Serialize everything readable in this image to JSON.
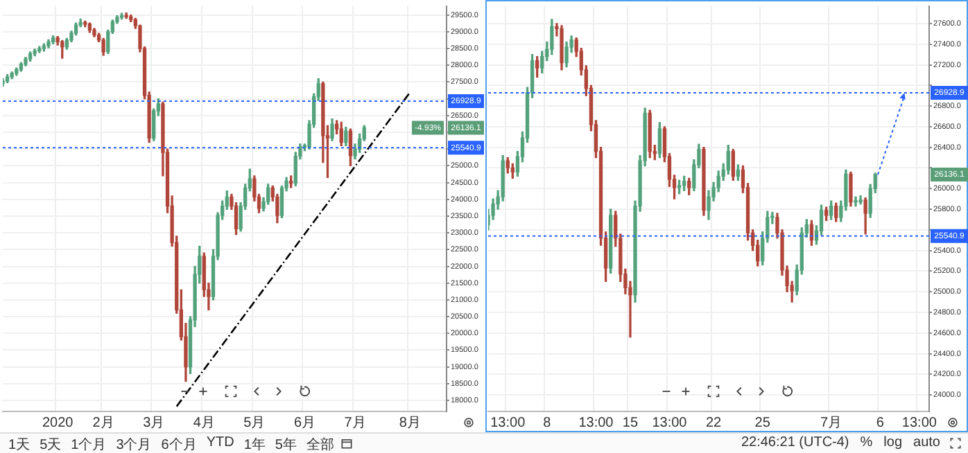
{
  "chart_data": [
    {
      "type": "candlestick",
      "grid": true,
      "legend": false,
      "categories": [
        null,
        null,
        null,
        null,
        null,
        null,
        null,
        null,
        null,
        null,
        null,
        null,
        "2020",
        null,
        null,
        null,
        null,
        null,
        null,
        null,
        null,
        null,
        "2月",
        null,
        null,
        null,
        null,
        null,
        null,
        null,
        null,
        null,
        null,
        "3月",
        null,
        null,
        null,
        null,
        null,
        null,
        null,
        null,
        null,
        null,
        "4月",
        null,
        null,
        null,
        null,
        null,
        null,
        null,
        null,
        null,
        null,
        "5月",
        null,
        null,
        null,
        null,
        null,
        null,
        null,
        null,
        null,
        null,
        "6月",
        null,
        null,
        null,
        null,
        null,
        null,
        null,
        null,
        null,
        null,
        "7月",
        null,
        null,
        null,
        null,
        null,
        null,
        null,
        null,
        null,
        null,
        null,
        "8月",
        null,
        null,
        null,
        null,
        null,
        null,
        null,
        null
      ],
      "ohlc": [
        [
          27450,
          27600,
          27380,
          27530
        ],
        [
          27530,
          27720,
          27480,
          27650
        ],
        [
          27650,
          27800,
          27600,
          27760
        ],
        [
          27760,
          27920,
          27700,
          27870
        ],
        [
          27870,
          28080,
          27820,
          28030
        ],
        [
          28030,
          28240,
          27980,
          28190
        ],
        [
          28190,
          28400,
          28120,
          28350
        ],
        [
          28350,
          28480,
          28280,
          28430
        ],
        [
          28430,
          28560,
          28380,
          28500
        ],
        [
          28500,
          28640,
          28420,
          28580
        ],
        [
          28580,
          28760,
          28520,
          28700
        ],
        [
          28700,
          28880,
          28640,
          28820
        ],
        [
          28820,
          28860,
          28600,
          28700
        ],
        [
          28700,
          28740,
          28210,
          28550
        ],
        [
          28550,
          28800,
          28480,
          28750
        ],
        [
          28750,
          29020,
          28700,
          28960
        ],
        [
          28960,
          29260,
          28900,
          29200
        ],
        [
          29200,
          29380,
          29150,
          29280
        ],
        [
          29280,
          29320,
          29150,
          29230
        ],
        [
          29230,
          29260,
          28980,
          29050
        ],
        [
          29050,
          29100,
          28850,
          28900
        ],
        [
          28900,
          28950,
          28700,
          28750
        ],
        [
          28750,
          28800,
          28300,
          28400
        ],
        [
          28400,
          29050,
          28350,
          29000
        ],
        [
          29000,
          29350,
          28950,
          29300
        ],
        [
          29300,
          29480,
          29250,
          29430
        ],
        [
          29430,
          29550,
          29380,
          29480
        ],
        [
          29480,
          29560,
          29400,
          29450
        ],
        [
          29450,
          29500,
          29300,
          29360
        ],
        [
          29360,
          29400,
          29100,
          29180
        ],
        [
          29180,
          29200,
          28400,
          28500
        ],
        [
          28500,
          28550,
          27000,
          27100
        ],
        [
          27100,
          27200,
          25700,
          25830
        ],
        [
          25830,
          26700,
          25750,
          26640
        ],
        [
          26640,
          27000,
          26500,
          26850
        ],
        [
          26850,
          26900,
          24700,
          25400
        ],
        [
          25400,
          25500,
          23600,
          23800
        ],
        [
          23800,
          24100,
          22600,
          22710
        ],
        [
          22710,
          22900,
          20600,
          20700
        ],
        [
          20700,
          21300,
          19800,
          19900
        ],
        [
          19900,
          20300,
          18570,
          19000
        ],
        [
          19000,
          20500,
          18800,
          20400
        ],
        [
          20400,
          22000,
          20200,
          21760
        ],
        [
          21760,
          22600,
          21500,
          22300
        ],
        [
          22300,
          22400,
          21100,
          21300
        ],
        [
          21300,
          21500,
          20700,
          21100
        ],
        [
          21100,
          22500,
          21000,
          22300
        ],
        [
          22300,
          23600,
          22200,
          23520
        ],
        [
          23520,
          23950,
          23400,
          23800
        ],
        [
          23800,
          24250,
          23700,
          24070
        ],
        [
          24070,
          24150,
          23700,
          23800
        ],
        [
          23800,
          23900,
          22950,
          23120
        ],
        [
          23120,
          23900,
          23050,
          23800
        ],
        [
          23800,
          24450,
          23700,
          24340
        ],
        [
          24340,
          24900,
          24250,
          24610
        ],
        [
          24610,
          24700,
          23950,
          24070
        ],
        [
          24070,
          24150,
          23600,
          23730
        ],
        [
          23730,
          24050,
          23650,
          23930
        ],
        [
          23930,
          24450,
          23850,
          24340
        ],
        [
          24340,
          24400,
          23950,
          24070
        ],
        [
          24070,
          24150,
          23300,
          23520
        ],
        [
          23520,
          24400,
          23450,
          24340
        ],
        [
          24340,
          24650,
          24250,
          24540
        ],
        [
          24540,
          24700,
          24350,
          24480
        ],
        [
          24480,
          25400,
          24400,
          25290
        ],
        [
          25290,
          25650,
          25200,
          25560
        ],
        [
          25560,
          25650,
          25450,
          25560
        ],
        [
          25560,
          26350,
          25500,
          26240
        ],
        [
          26240,
          27150,
          26150,
          27060
        ],
        [
          27060,
          27600,
          26950,
          27450
        ],
        [
          27450,
          27500,
          25100,
          25900
        ],
        [
          25900,
          26200,
          24650,
          25830
        ],
        [
          25830,
          26400,
          25750,
          26240
        ],
        [
          26240,
          26350,
          25950,
          26100
        ],
        [
          26100,
          26300,
          25600,
          25700
        ],
        [
          25700,
          26150,
          25600,
          26040
        ],
        [
          26040,
          26100,
          25000,
          25300
        ],
        [
          25300,
          25650,
          25200,
          25500
        ],
        [
          25500,
          25950,
          25400,
          25800
        ],
        [
          25800,
          26200,
          25750,
          26136.1
        ],
        null,
        null,
        null,
        null,
        null,
        null,
        null,
        null,
        null,
        null,
        null,
        null,
        null,
        null,
        null,
        null,
        null,
        null
      ],
      "series": [
        {
          "type": "line",
          "color": "#000000",
          "line_style": "dashed",
          "values": [
            null,
            null,
            null,
            null,
            null,
            null,
            null,
            null,
            null,
            null,
            null,
            null,
            null,
            null,
            null,
            null,
            null,
            null,
            null,
            null,
            null,
            null,
            null,
            null,
            null,
            null,
            null,
            null,
            null,
            null,
            null,
            null,
            null,
            null,
            null,
            null,
            null,
            null,
            17820,
            null,
            null,
            null,
            null,
            null,
            null,
            null,
            null,
            null,
            null,
            null,
            null,
            null,
            null,
            null,
            null,
            null,
            null,
            null,
            null,
            null,
            null,
            null,
            null,
            null,
            null,
            null,
            null,
            null,
            null,
            null,
            null,
            null,
            null,
            null,
            null,
            null,
            null,
            null,
            null,
            null,
            null,
            null,
            null,
            null,
            null,
            null,
            null,
            null,
            null,
            27190,
            null,
            null,
            null,
            null,
            null,
            null,
            null,
            null
          ]
        }
      ],
      "ylim": [
        17670,
        29770
      ],
      "yticks": [
        {
          "value": 18000,
          "label": "18000.0"
        },
        {
          "value": 18500,
          "label": "18500.0"
        },
        {
          "value": 19000,
          "label": "19000.0"
        },
        {
          "value": 19500,
          "label": "19500.0"
        },
        {
          "value": 20000,
          "label": "20000.0"
        },
        {
          "value": 20500,
          "label": "20500.0"
        },
        {
          "value": 21000,
          "label": "21000.0"
        },
        {
          "value": 21500,
          "label": "21500.0"
        },
        {
          "value": 22000,
          "label": "22000.0"
        },
        {
          "value": 22500,
          "label": "22500.0"
        },
        {
          "value": 23000,
          "label": "23000.0"
        },
        {
          "value": 23500,
          "label": "23500.0"
        },
        {
          "value": 24000,
          "label": "24000.0"
        },
        {
          "value": 24500,
          "label": "24500.0"
        },
        {
          "value": 25000,
          "label": "25000.0"
        },
        {
          "value": 25500,
          "label": null
        },
        {
          "value": 26000,
          "label": null
        },
        {
          "value": 26500,
          "label": "26500.0"
        },
        {
          "value": 27000,
          "label": null
        },
        {
          "value": 27500,
          "label": "27500.0"
        },
        {
          "value": 28000,
          "label": "28000.0"
        },
        {
          "value": 28500,
          "label": "28500.0"
        },
        {
          "value": 29000,
          "label": "29000.0"
        },
        {
          "value": 29500,
          "label": "29500.0"
        }
      ],
      "ref_lines": [
        {
          "axis": "y",
          "value": 26928.9,
          "label": "26928.9",
          "color": "#2962ff",
          "line_style": "dotted"
        },
        {
          "axis": "y",
          "value": 25540.9,
          "label": "25540.9",
          "color": "#2962ff",
          "line_style": "dotted"
        }
      ],
      "annotations": [
        "1天",
        "5天",
        "1个月",
        "3个月",
        "6个月",
        "YTD",
        "1年",
        "5年",
        "全部",
        {
          "text": "-4.93%",
          "y": 26136.1
        },
        {
          "text": "26136.1",
          "y": 26136.1
        }
      ]
    },
    {
      "type": "candlestick",
      "grid": true,
      "legend": false,
      "categories": [
        null,
        null,
        null,
        null,
        "13:00",
        null,
        null,
        null,
        null,
        null,
        null,
        null,
        "8",
        null,
        null,
        null,
        null,
        null,
        null,
        null,
        null,
        null,
        "13:00",
        null,
        null,
        null,
        null,
        null,
        null,
        "15",
        null,
        null,
        null,
        null,
        null,
        null,
        null,
        "13:00",
        null,
        null,
        null,
        null,
        null,
        null,
        null,
        null,
        "22",
        null,
        null,
        null,
        null,
        null,
        null,
        null,
        null,
        null,
        "25",
        null,
        null,
        null,
        null,
        null,
        null,
        null,
        null,
        null,
        null,
        null,
        null,
        null,
        "7月",
        null,
        null,
        null,
        null,
        null,
        null,
        null,
        null,
        null,
        "6",
        null,
        null,
        null,
        null,
        null,
        null,
        null,
        "13:00",
        null,
        null
      ],
      "ohlc": [
        [
          25650,
          25800,
          25600,
          25740
        ],
        [
          25740,
          25900,
          25700,
          25850
        ],
        [
          25850,
          25980,
          25800,
          25920
        ],
        [
          25920,
          26320,
          25880,
          26270
        ],
        [
          26270,
          26300,
          26150,
          26200
        ],
        [
          26200,
          26240,
          26100,
          26160
        ],
        [
          26160,
          26360,
          26120,
          26310
        ],
        [
          26310,
          26550,
          26260,
          26490
        ],
        [
          26490,
          26980,
          26450,
          26930
        ],
        [
          26930,
          27300,
          26880,
          27240
        ],
        [
          27240,
          27280,
          27080,
          27170
        ],
        [
          27170,
          27330,
          27120,
          27280
        ],
        [
          27280,
          27420,
          27240,
          27350
        ],
        [
          27350,
          27640,
          27300,
          27570
        ],
        [
          27570,
          27600,
          27480,
          27550
        ],
        [
          27550,
          27580,
          27150,
          27220
        ],
        [
          27220,
          27420,
          27180,
          27370
        ],
        [
          27370,
          27480,
          27320,
          27440
        ],
        [
          27440,
          27460,
          27280,
          27330
        ],
        [
          27330,
          27360,
          27100,
          27150
        ],
        [
          27150,
          27190,
          26900,
          26970
        ],
        [
          26970,
          27000,
          26560,
          26620
        ],
        [
          26620,
          26660,
          26300,
          26360
        ],
        [
          26360,
          26400,
          25450,
          25520
        ],
        [
          25520,
          25580,
          25100,
          25230
        ],
        [
          25230,
          25800,
          25180,
          25740
        ],
        [
          25740,
          25780,
          25440,
          25520
        ],
        [
          25520,
          25560,
          25100,
          25170
        ],
        [
          25170,
          25220,
          24980,
          25040
        ],
        [
          25040,
          25100,
          24560,
          24970
        ],
        [
          24970,
          25880,
          24900,
          25830
        ],
        [
          25830,
          26320,
          25780,
          26270
        ],
        [
          26270,
          26780,
          26220,
          26730
        ],
        [
          26730,
          26760,
          26300,
          26360
        ],
        [
          26360,
          26420,
          26280,
          26340
        ],
        [
          26340,
          26640,
          26300,
          26580
        ],
        [
          26580,
          26600,
          26260,
          26310
        ],
        [
          26310,
          26340,
          26020,
          26090
        ],
        [
          26090,
          26130,
          25900,
          26010
        ],
        [
          26010,
          26080,
          25950,
          26030
        ],
        [
          26030,
          26120,
          25980,
          26070
        ],
        [
          26070,
          26100,
          25940,
          26010
        ],
        [
          26010,
          26280,
          25980,
          26230
        ],
        [
          26230,
          26430,
          26200,
          26380
        ],
        [
          26380,
          26400,
          25740,
          25790
        ],
        [
          25790,
          25980,
          25700,
          25920
        ],
        [
          25920,
          26060,
          25880,
          26010
        ],
        [
          26010,
          26170,
          25970,
          26120
        ],
        [
          26120,
          26240,
          26080,
          26180
        ],
        [
          26180,
          26420,
          26140,
          26360
        ],
        [
          26360,
          26380,
          26080,
          26120
        ],
        [
          26120,
          26230,
          26080,
          26180
        ],
        [
          26180,
          26220,
          25960,
          26010
        ],
        [
          26010,
          26050,
          25500,
          25570
        ],
        [
          25570,
          25600,
          25400,
          25450
        ],
        [
          25450,
          25500,
          25250,
          25300
        ],
        [
          25300,
          25580,
          25260,
          25520
        ],
        [
          25520,
          25780,
          25480,
          25720
        ],
        [
          25720,
          25770,
          25660,
          25720
        ],
        [
          25720,
          25760,
          25520,
          25570
        ],
        [
          25570,
          25600,
          25160,
          25210
        ],
        [
          25210,
          25250,
          25000,
          25060
        ],
        [
          25060,
          25100,
          24900,
          25010
        ],
        [
          25010,
          25260,
          24970,
          25210
        ],
        [
          25210,
          25620,
          25170,
          25570
        ],
        [
          25570,
          25700,
          25530,
          25650
        ],
        [
          25650,
          25690,
          25450,
          25500
        ],
        [
          25500,
          25640,
          25460,
          25590
        ],
        [
          25590,
          25840,
          25550,
          25790
        ],
        [
          25790,
          25820,
          25690,
          25740
        ],
        [
          25740,
          25880,
          25700,
          25830
        ],
        [
          25830,
          25860,
          25680,
          25720
        ],
        [
          25720,
          25880,
          25680,
          25830
        ],
        [
          25830,
          26180,
          25790,
          26140
        ],
        [
          26140,
          26160,
          25830,
          25870
        ],
        [
          25870,
          25920,
          25830,
          25870
        ],
        [
          25870,
          25930,
          25850,
          25890
        ],
        [
          25890,
          25910,
          25560,
          25760
        ],
        [
          25760,
          26040,
          25720,
          26000
        ],
        [
          26000,
          26150,
          25960,
          26136.1
        ],
        null,
        null,
        null,
        null,
        null,
        null,
        null,
        null,
        null,
        null,
        null
      ],
      "ylim": [
        23840,
        27770
      ],
      "yticks": [
        {
          "value": 24000,
          "label": "24000.0"
        },
        {
          "value": 24200,
          "label": "24200.0"
        },
        {
          "value": 24400,
          "label": "24400.0"
        },
        {
          "value": 24600,
          "label": "24600.0"
        },
        {
          "value": 24800,
          "label": "24800.0"
        },
        {
          "value": 25000,
          "label": "25000.0"
        },
        {
          "value": 25200,
          "label": "25200.0"
        },
        {
          "value": 25400,
          "label": "25400.0"
        },
        {
          "value": 25600,
          "label": null
        },
        {
          "value": 25800,
          "label": "25800.0"
        },
        {
          "value": 26000,
          "label": "26000.0"
        },
        {
          "value": 26200,
          "label": null
        },
        {
          "value": 26400,
          "label": "26400.0"
        },
        {
          "value": 26600,
          "label": "26600.0"
        },
        {
          "value": 26800,
          "label": "26800.0"
        },
        {
          "value": 27000,
          "label": null
        },
        {
          "value": 27200,
          "label": "27200.0"
        },
        {
          "value": 27400,
          "label": "27400.0"
        },
        {
          "value": 27600,
          "label": "27600.0"
        }
      ],
      "ref_lines": [
        {
          "axis": "y",
          "value": 26928.9,
          "label": "26928.9",
          "color": "#2962ff",
          "line_style": "dotted"
        },
        {
          "axis": "y",
          "value": 25540.9,
          "label": "25540.9",
          "color": "#2962ff",
          "line_style": "dotted"
        }
      ],
      "annotations": [
        "22:46:21 (UTC-4)",
        "%",
        "log",
        "auto",
        {
          "text": "26136.1",
          "y": 26136.1
        }
      ]
    }
  ]
}
